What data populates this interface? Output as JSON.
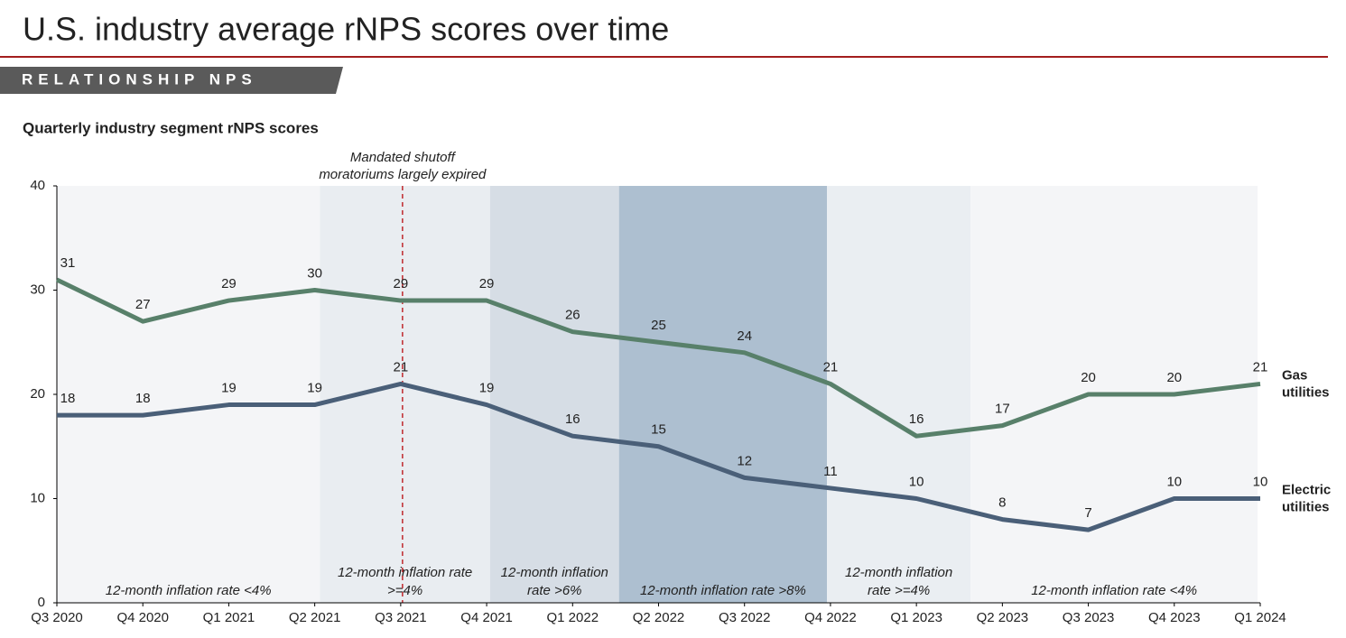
{
  "header": {
    "title": "U.S. industry average rNPS scores over time",
    "section": "RELATIONSHIP NPS"
  },
  "chart_data": {
    "type": "line",
    "title": "Quarterly industry segment rNPS scores",
    "categories": [
      "Q3 2020",
      "Q4 2020",
      "Q1 2021",
      "Q2 2021",
      "Q3 2021",
      "Q4 2021",
      "Q1 2022",
      "Q2 2022",
      "Q3 2022",
      "Q4 2022",
      "Q1 2023",
      "Q2 2023",
      "Q3 2023",
      "Q4 2023",
      "Q1 2024"
    ],
    "series": [
      {
        "name": "Gas utilities",
        "color": "#58806a",
        "values": [
          31,
          27,
          29,
          30,
          29,
          29,
          26,
          25,
          24,
          21,
          16,
          17,
          20,
          20,
          21
        ]
      },
      {
        "name": "Electric utilities",
        "color": "#4a5f78",
        "values": [
          18,
          18,
          19,
          19,
          21,
          19,
          16,
          15,
          12,
          11,
          10,
          8,
          7,
          10,
          10
        ]
      }
    ],
    "ylim": [
      0,
      40
    ],
    "yticks": [
      0,
      10,
      20,
      30,
      40
    ],
    "annotation": [
      "Mandated shutoff",
      "moratoriums largely expired"
    ],
    "bands": [
      {
        "label": [
          "12-month inflation rate <4%"
        ],
        "color": "#f4f5f7"
      },
      {
        "label": [
          "12-month inflation rate",
          ">=4%"
        ],
        "color": "#e9edf1"
      },
      {
        "label": [
          "12-month inflation",
          "rate >6%"
        ],
        "color": "#d6dde5"
      },
      {
        "label": [
          "12-month inflation rate >8%"
        ],
        "color": "#adbfd0"
      },
      {
        "label": [
          "12-month inflation",
          "rate >=4%"
        ],
        "color": "#eaeef2"
      },
      {
        "label": [
          "12-month inflation rate <4%"
        ],
        "color": "#f4f5f7"
      }
    ]
  }
}
